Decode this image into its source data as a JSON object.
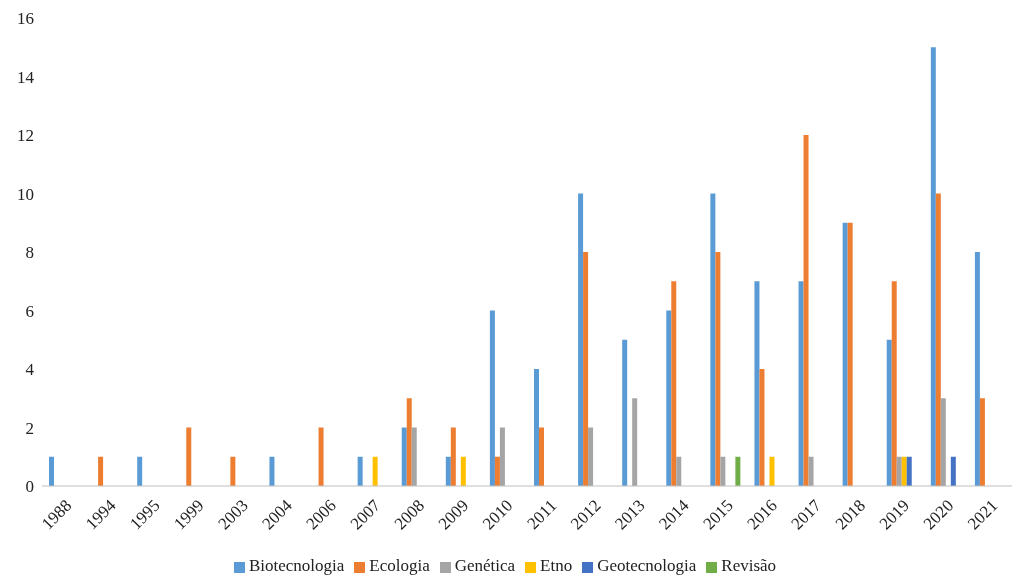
{
  "chart_data": {
    "type": "bar",
    "categories": [
      "1988",
      "1994",
      "1995",
      "1999",
      "2003",
      "2004",
      "2006",
      "2007",
      "2008",
      "2009",
      "2010",
      "2011",
      "2012",
      "2013",
      "2014",
      "2015",
      "2016",
      "2017",
      "2018",
      "2019",
      "2020",
      "2021"
    ],
    "series": [
      {
        "name": "Biotecnologia",
        "color": "#5b9bd5",
        "values": [
          1,
          0,
          1,
          0,
          0,
          1,
          0,
          1,
          2,
          1,
          6,
          4,
          10,
          5,
          6,
          10,
          7,
          7,
          9,
          5,
          15,
          8
        ]
      },
      {
        "name": "Ecologia",
        "color": "#ed7d31",
        "values": [
          0,
          1,
          0,
          2,
          1,
          0,
          2,
          0,
          3,
          2,
          1,
          2,
          8,
          0,
          7,
          8,
          4,
          12,
          9,
          7,
          10,
          3
        ]
      },
      {
        "name": "Genética",
        "color": "#a5a5a5",
        "values": [
          0,
          0,
          0,
          0,
          0,
          0,
          0,
          0,
          2,
          0,
          2,
          0,
          2,
          3,
          1,
          1,
          0,
          1,
          0,
          1,
          3,
          0
        ]
      },
      {
        "name": "Etno",
        "color": "#ffc000",
        "values": [
          0,
          0,
          0,
          0,
          0,
          0,
          0,
          1,
          0,
          1,
          0,
          0,
          0,
          0,
          0,
          0,
          1,
          0,
          0,
          1,
          0,
          0
        ]
      },
      {
        "name": "Geotecnologia",
        "color": "#4472c4",
        "values": [
          0,
          0,
          0,
          0,
          0,
          0,
          0,
          0,
          0,
          0,
          0,
          0,
          0,
          0,
          0,
          0,
          0,
          0,
          0,
          1,
          1,
          0
        ]
      },
      {
        "name": "Revisão",
        "color": "#70ad47",
        "values": [
          0,
          0,
          0,
          0,
          0,
          0,
          0,
          0,
          0,
          0,
          0,
          0,
          0,
          0,
          0,
          1,
          0,
          0,
          0,
          0,
          0,
          0
        ]
      }
    ],
    "ylim": [
      0,
      16
    ],
    "yticks": [
      0,
      2,
      4,
      6,
      8,
      10,
      12,
      14,
      16
    ],
    "grid": false,
    "legend": "bottom"
  }
}
